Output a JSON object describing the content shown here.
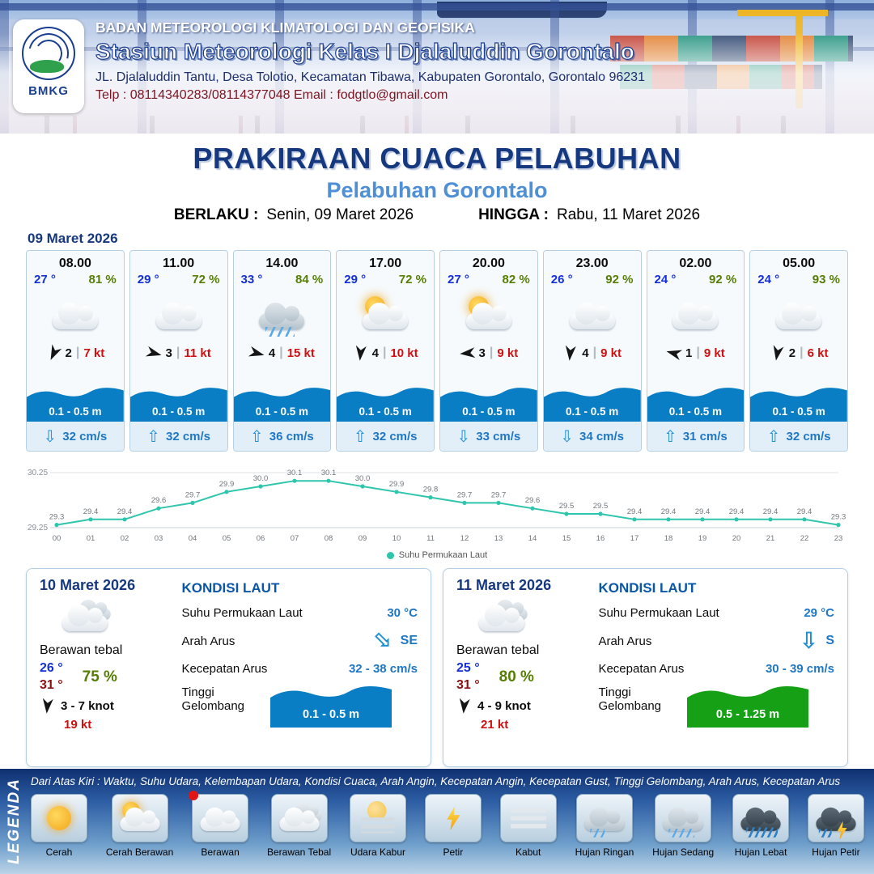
{
  "header": {
    "logo_text": "BMKG",
    "agency": "BADAN METEOROLOGI KLIMATOLOGI DAN GEOFISIKA",
    "station": "Stasiun Meteorologi Kelas I Djalaluddin Gorontalo",
    "address": "JL. Djalaluddin Tantu, Desa Tolotio, Kecamatan Tibawa, Kabupaten Gorontalo, Gorontalo 96231",
    "contact": "Telp : 08114340283/08114377048 Email : fodgtlo@gmail.com"
  },
  "title": {
    "main": "PRAKIRAAN CUACA PELABUHAN",
    "sub": "Pelabuhan Gorontalo",
    "valid_label": "BERLAKU :",
    "valid_value": "Senin, 09 Maret 2026",
    "until_label": "HINGGA :",
    "until_value": "Rabu, 11 Maret 2026"
  },
  "hourly": {
    "date": "09 Maret 2026",
    "cards": [
      {
        "time": "08.00",
        "temp": "27 °",
        "humidity": "81 %",
        "icon": "berawan",
        "wind_deg": 115,
        "wind_val": "2",
        "wind_kt": "7 kt",
        "wave": "0.1 - 0.5 m",
        "current_dir": "down",
        "current": "32 cm/s"
      },
      {
        "time": "11.00",
        "temp": "29 °",
        "humidity": "72 %",
        "icon": "berawan",
        "wind_deg": 15,
        "wind_val": "3",
        "wind_kt": "11 kt",
        "wave": "0.1 - 0.5 m",
        "current_dir": "up",
        "current": "32 cm/s"
      },
      {
        "time": "14.00",
        "temp": "33 °",
        "humidity": "84 %",
        "icon": "hujan-sedang",
        "wind_deg": 15,
        "wind_val": "4",
        "wind_kt": "15 kt",
        "wave": "0.1 - 0.5 m",
        "current_dir": "up",
        "current": "36 cm/s"
      },
      {
        "time": "17.00",
        "temp": "29 °",
        "humidity": "72 %",
        "icon": "cerah-berawan",
        "wind_deg": 95,
        "wind_val": "4",
        "wind_kt": "10 kt",
        "wave": "0.1 - 0.5 m",
        "current_dir": "up",
        "current": "32 cm/s"
      },
      {
        "time": "20.00",
        "temp": "27 °",
        "humidity": "82 %",
        "icon": "cerah-berawan",
        "wind_deg": 175,
        "wind_val": "3",
        "wind_kt": "9 kt",
        "wave": "0.1 - 0.5 m",
        "current_dir": "down",
        "current": "33 cm/s"
      },
      {
        "time": "23.00",
        "temp": "26 °",
        "humidity": "92 %",
        "icon": "berawan",
        "wind_deg": 95,
        "wind_val": "4",
        "wind_kt": "9 kt",
        "wave": "0.1 - 0.5 m",
        "current_dir": "down",
        "current": "34 cm/s"
      },
      {
        "time": "02.00",
        "temp": "24 °",
        "humidity": "92 %",
        "icon": "berawan",
        "wind_deg": 195,
        "wind_val": "1",
        "wind_kt": "9 kt",
        "wave": "0.1 - 0.5 m",
        "current_dir": "up",
        "current": "31 cm/s"
      },
      {
        "time": "05.00",
        "temp": "24 °",
        "humidity": "93 %",
        "icon": "berawan",
        "wind_deg": 100,
        "wind_val": "2",
        "wind_kt": "6 kt",
        "wave": "0.1 - 0.5 m",
        "current_dir": "up",
        "current": "32 cm/s"
      }
    ]
  },
  "chart_data": {
    "type": "line",
    "x": [
      "00",
      "01",
      "02",
      "03",
      "04",
      "05",
      "06",
      "07",
      "08",
      "09",
      "10",
      "11",
      "12",
      "13",
      "14",
      "15",
      "16",
      "17",
      "18",
      "19",
      "20",
      "21",
      "22",
      "23"
    ],
    "series": [
      {
        "name": "Suhu Permukaan Laut",
        "values": [
          29.3,
          29.4,
          29.4,
          29.6,
          29.7,
          29.9,
          30.0,
          30.1,
          30.1,
          30.0,
          29.9,
          29.8,
          29.7,
          29.7,
          29.6,
          29.5,
          29.5,
          29.4,
          29.4,
          29.4,
          29.4,
          29.4,
          29.4,
          29.3
        ]
      }
    ],
    "ylim": [
      29.25,
      30.25
    ],
    "y_ticks": [
      "30.25",
      "29.25"
    ],
    "legend_position": "bottom",
    "line_color": "#2fc5ad",
    "grid": true
  },
  "daily_labels": {
    "title": "KONDISI LAUT",
    "sst": "Suhu Permukaan Laut",
    "dir": "Arah Arus",
    "speed": "Kecepatan Arus",
    "wave": "Tinggi Gelombang"
  },
  "daily": [
    {
      "date": "10 Maret 2026",
      "condition": "Berawan tebal",
      "icon": "berawan-tebal",
      "temp_min": "26 °",
      "temp_max": "31 °",
      "humidity": "75 %",
      "wind_deg": 95,
      "wind_range": "3 - 7 knot",
      "gust": "19 kt",
      "sea": {
        "sst": "30 °C",
        "current_dir": "SE",
        "arrow_deg": -45,
        "current_speed": "32 - 38 cm/s",
        "wave": "0.1 - 0.5 m",
        "wave_color": "#0a7ec4"
      }
    },
    {
      "date": "11 Maret 2026",
      "condition": "Berawan tebal",
      "icon": "berawan-tebal",
      "temp_min": "25 °",
      "temp_max": "31 °",
      "humidity": "80 %",
      "wind_deg": 95,
      "wind_range": "4 - 9 knot",
      "gust": "21 kt",
      "sea": {
        "sst": "29 °C",
        "current_dir": "S",
        "arrow_deg": 0,
        "current_speed": "30 - 39 cm/s",
        "wave": "0.5 - 1.25 m",
        "wave_color": "#16a016"
      }
    }
  ],
  "legend": {
    "title": "LEGENDA",
    "description": "Dari Atas Kiri : Waktu, Suhu Udara, Kelembapan Udara, Kondisi Cuaca, Arah Angin, Kecepatan Angin, Kecepatan Gust, Tinggi Gelombang, Arah Arus, Kecepatan Arus",
    "items": [
      {
        "label": "Cerah",
        "icon": "cerah"
      },
      {
        "label": "Cerah Berawan",
        "icon": "cerah-berawan"
      },
      {
        "label": "Berawan",
        "icon": "berawan",
        "marked": true
      },
      {
        "label": "Berawan Tebal",
        "icon": "berawan-tebal"
      },
      {
        "label": "Udara Kabur",
        "icon": "udara-kabur"
      },
      {
        "label": "Petir",
        "icon": "petir"
      },
      {
        "label": "Kabut",
        "icon": "kabut"
      },
      {
        "label": "Hujan Ringan",
        "icon": "hujan-ringan"
      },
      {
        "label": "Hujan Sedang",
        "icon": "hujan-sedang"
      },
      {
        "label": "Hujan Lebat",
        "icon": "hujan-lebat"
      },
      {
        "label": "Hujan Petir",
        "icon": "hujan-petir"
      }
    ]
  }
}
